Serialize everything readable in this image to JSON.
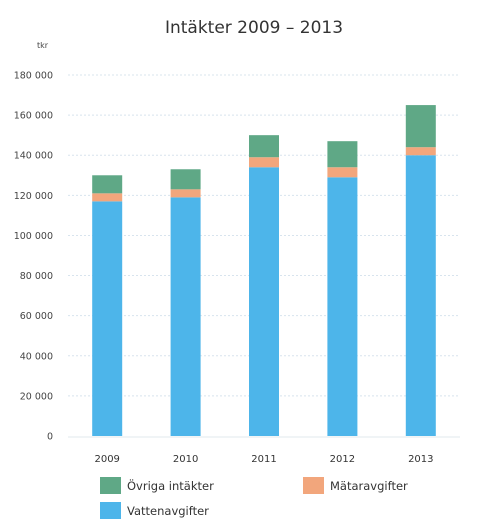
{
  "chart_data": {
    "type": "bar",
    "stacked": true,
    "title": "Intäkter 2009 – 2013",
    "unit_label": "tkr",
    "categories": [
      "2009",
      "2010",
      "2011",
      "2012",
      "2013"
    ],
    "ylim": [
      0,
      180000
    ],
    "yticks": [
      0,
      20000,
      40000,
      60000,
      80000,
      100000,
      120000,
      140000,
      160000,
      180000
    ],
    "ytick_labels": [
      "0",
      "20 000",
      "40 000",
      "60 000",
      "80 000",
      "100 000",
      "120 000",
      "140 000",
      "160 000",
      "180 000"
    ],
    "grid": true,
    "series": [
      {
        "name": "Vattenavgifter",
        "color": "#4db5ea",
        "values": [
          117000,
          119000,
          134000,
          129000,
          140000
        ]
      },
      {
        "name": "Mätaravgifter",
        "color": "#f2a67c",
        "values": [
          4000,
          4000,
          5000,
          5000,
          4000
        ]
      },
      {
        "name": "Övriga intäkter",
        "color": "#5fa886",
        "values": [
          9000,
          10000,
          11000,
          13000,
          21000
        ]
      }
    ],
    "legend": [
      {
        "name": "Övriga intäkter",
        "color": "#5fa886"
      },
      {
        "name": "Mätaravgifter",
        "color": "#f2a67c"
      },
      {
        "name": "Vattenavgifter",
        "color": "#4db5ea"
      }
    ]
  }
}
